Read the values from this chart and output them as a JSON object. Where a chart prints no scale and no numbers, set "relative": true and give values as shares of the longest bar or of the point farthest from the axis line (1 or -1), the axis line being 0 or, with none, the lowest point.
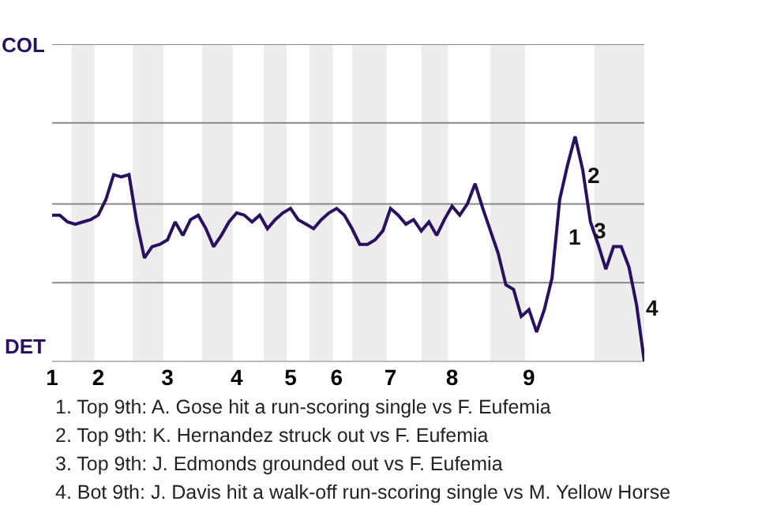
{
  "chart_data": {
    "type": "line",
    "relative": true,
    "categories": [
      "1",
      null,
      null,
      null,
      null,
      null,
      "2",
      null,
      null,
      null,
      null,
      null,
      null,
      null,
      null,
      "3",
      null,
      null,
      null,
      null,
      null,
      null,
      null,
      null,
      "4",
      null,
      null,
      null,
      null,
      null,
      null,
      "5",
      null,
      null,
      null,
      null,
      null,
      "6",
      null,
      null,
      null,
      null,
      null,
      null,
      "7",
      null,
      null,
      null,
      null,
      null,
      null,
      null,
      "8",
      null,
      null,
      null,
      null,
      null,
      null,
      null,
      null,
      null,
      "9",
      null,
      null,
      null,
      null,
      null,
      null,
      null,
      null,
      null,
      null,
      null,
      null,
      null,
      null,
      null
    ],
    "series": [
      {
        "color": "#2a1060",
        "values": [
          0.65,
          0.65,
          0.62,
          0.61,
          0.62,
          0.63,
          0.65,
          0.72,
          0.83,
          0.82,
          0.83,
          0.62,
          0.46,
          0.51,
          0.52,
          0.54,
          0.62,
          0.56,
          0.63,
          0.65,
          0.59,
          0.51,
          0.56,
          0.62,
          0.66,
          0.65,
          0.62,
          0.65,
          0.59,
          0.63,
          0.66,
          0.68,
          0.63,
          0.61,
          0.59,
          0.63,
          0.66,
          0.68,
          0.65,
          0.59,
          0.52,
          0.52,
          0.54,
          0.58,
          0.68,
          0.65,
          0.61,
          0.63,
          0.58,
          0.62,
          0.56,
          0.63,
          0.69,
          0.65,
          0.7,
          0.79,
          0.68,
          0.58,
          0.48,
          0.34,
          0.32,
          0.2,
          0.23,
          0.13,
          0.23,
          0.37,
          0.72,
          0.87,
          1,
          0.85,
          0.62,
          0.52,
          0.41,
          0.51,
          0.51,
          0.42,
          0.25,
          0
        ]
      }
    ],
    "marker": "none",
    "line_style": "solid",
    "ref_lines": [
      {
        "axis": "y",
        "value": 0.35,
        "label": null,
        "color": "#888888"
      },
      {
        "axis": "y",
        "value": 0.7,
        "label": null,
        "color": "#888888"
      },
      {
        "axis": "y",
        "value": 1.06,
        "label": null,
        "color": "#888888"
      },
      {
        "axis": "y",
        "value": 1.41,
        "label": null,
        "color": "#888888"
      }
    ],
    "annotations": [
      "COL",
      "DET",
      "1",
      "2",
      "3",
      "4",
      "1. Top 9th: A. Gose hit a run-scoring single vs F. Eufemia",
      "2. Top 9th: K. Hernandez struck out vs F. Eufemia",
      "3. Top 9th: J. Edmonds grounded out vs F. Eufemia",
      "4. Bot 9th: J. Davis hit a walk-off run-scoring single vs M. Yellow Horse"
    ]
  }
}
